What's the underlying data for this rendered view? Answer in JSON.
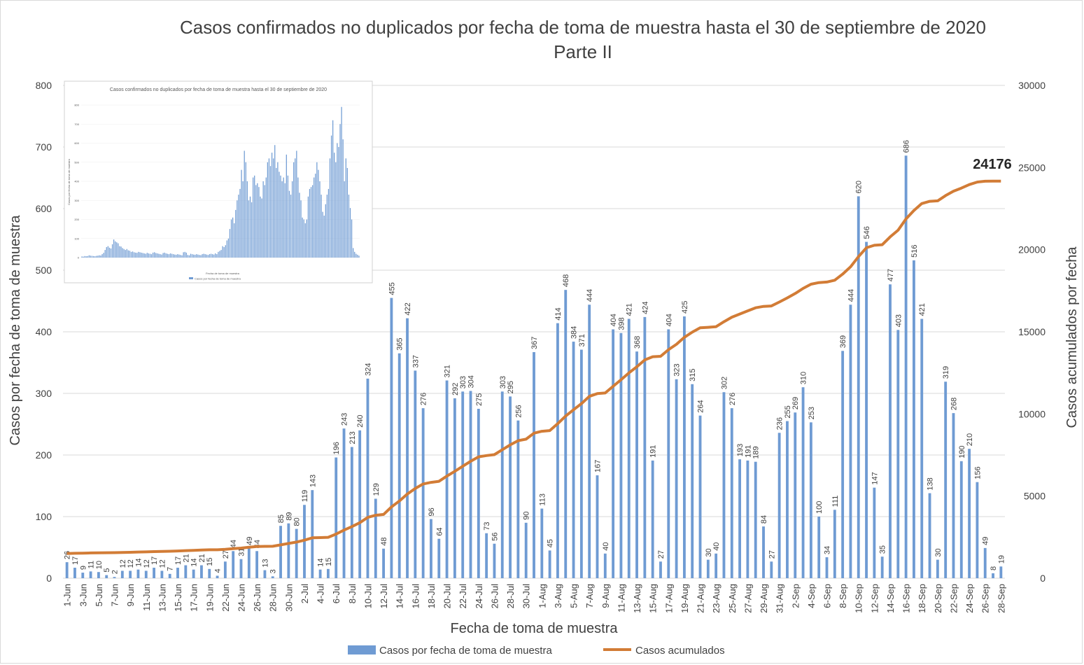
{
  "chart_data": {
    "type": "bar",
    "title": "Casos confirmados no duplicados por fecha de toma de muestra hasta el 30 de septiembre de 2020",
    "subtitle": "Parte II",
    "xlabel": "Fecha de toma de muestra",
    "ylabel": "Casos por fecha de toma de muestra",
    "y2label": "Casos acumulados por fecha",
    "ylim": [
      0,
      800
    ],
    "y2lim": [
      0,
      30000
    ],
    "yticks": [
      "0",
      "100",
      "200",
      "300",
      "400",
      "500",
      "600",
      "700",
      "800"
    ],
    "y2ticks": [
      "0",
      "5000",
      "10000",
      "15000",
      "20000",
      "25000",
      "30000"
    ],
    "grid": true,
    "legend_position": "bottom",
    "final_label": "24176",
    "colors": {
      "bars": "#6f9bd3",
      "line": "#d27c36",
      "grid": "#d9d9d9"
    },
    "tick_labels": [
      "1-Jun",
      "3-Jun",
      "5-Jun",
      "7-Jun",
      "9-Jun",
      "11-Jun",
      "13-Jun",
      "15-Jun",
      "17-Jun",
      "19-Jun",
      "22-Jun",
      "24-Jun",
      "26-Jun",
      "28-Jun",
      "30-Jun",
      "2-Jul",
      "4-Jul",
      "6-Jul",
      "8-Jul",
      "10-Jul",
      "12-Jul",
      "14-Jul",
      "16-Jul",
      "18-Jul",
      "20-Jul",
      "22-Jul",
      "24-Jul",
      "26-Jul",
      "28-Jul",
      "30-Jul",
      "1-Aug",
      "3-Aug",
      "5-Aug",
      "7-Aug",
      "9-Aug",
      "11-Aug",
      "13-Aug",
      "15-Aug",
      "17-Aug",
      "19-Aug",
      "21-Aug",
      "23-Aug",
      "25-Aug",
      "27-Aug",
      "29-Aug",
      "31-Aug",
      "2-Sep",
      "4-Sep",
      "6-Sep",
      "8-Sep",
      "10-Sep",
      "12-Sep",
      "14-Sep",
      "16-Sep",
      "18-Sep",
      "20-Sep",
      "22-Sep",
      "24-Sep",
      "26-Sep",
      "28-Sep"
    ],
    "series": [
      {
        "name": "Casos por fecha de toma de muestra",
        "type": "bar",
        "values": [
          26,
          17,
          9,
          11,
          10,
          5,
          2,
          12,
          12,
          14,
          12,
          17,
          12,
          7,
          17,
          21,
          14,
          21,
          15,
          4,
          27,
          44,
          31,
          49,
          44,
          13,
          3,
          85,
          89,
          80,
          119,
          143,
          14,
          15,
          196,
          243,
          213,
          240,
          324,
          129,
          48,
          455,
          365,
          422,
          337,
          276,
          96,
          64,
          321,
          292,
          303,
          304,
          275,
          73,
          56,
          303,
          295,
          256,
          90,
          367,
          113,
          45,
          414,
          468,
          384,
          371,
          444,
          167,
          40,
          404,
          398,
          421,
          368,
          424,
          191,
          27,
          404,
          323,
          425,
          315,
          264,
          30,
          40,
          302,
          276,
          193,
          191,
          189,
          84,
          27,
          236,
          255,
          269,
          310,
          253,
          100,
          34,
          111,
          369,
          444,
          620,
          546,
          147,
          35,
          477,
          403,
          686,
          516,
          421,
          138,
          30,
          319,
          268,
          190,
          210,
          156,
          49,
          8,
          19
        ]
      },
      {
        "name": "Casos acumulados",
        "type": "line",
        "values": [
          1500,
          1517,
          1526,
          1537,
          1547,
          1552,
          1554,
          1566,
          1578,
          1592,
          1604,
          1621,
          1633,
          1640,
          1657,
          1678,
          1692,
          1713,
          1728,
          1732,
          1759,
          1803,
          1834,
          1883,
          1927,
          1940,
          1943,
          2028,
          2117,
          2197,
          2316,
          2459,
          2473,
          2488,
          2684,
          2927,
          3140,
          3380,
          3704,
          3833,
          3881,
          4336,
          4701,
          5123,
          5460,
          5736,
          5832,
          5896,
          6217,
          6509,
          6812,
          7116,
          7391,
          7464,
          7520,
          7823,
          8118,
          8374,
          8464,
          8831,
          8944,
          8989,
          9403,
          9871,
          10255,
          10626,
          11070,
          11237,
          11277,
          11681,
          12079,
          12500,
          12868,
          13292,
          13483,
          13510,
          13914,
          14237,
          14662,
          14977,
          15241,
          15271,
          15311,
          15613,
          15889,
          16082,
          16273,
          16462,
          16546,
          16573,
          16809,
          17064,
          17333,
          17643,
          17896,
          17996,
          18030,
          18141,
          18510,
          18954,
          19574,
          20120,
          20267,
          20302,
          20779,
          21182,
          21868,
          22384,
          22805,
          22943,
          22973,
          23292,
          23560,
          23750,
          23960,
          24116,
          24165,
          24173,
          24176
        ]
      }
    ]
  },
  "inset": {
    "title": "Casos confirmados no duplicados por fecha de toma de muestra hasta el 30 de septiembre de 2020",
    "xlabel": "Fecha de toma de muestra",
    "ylabel": "Casos por fecha de toma de muestra",
    "legend": "Casos por fecha de toma de muestra",
    "ylim": [
      0,
      800
    ],
    "yticks": [
      "0",
      "100",
      "200",
      "300",
      "400",
      "500",
      "600",
      "700",
      "800"
    ],
    "values": [
      6,
      5,
      8,
      7,
      8,
      12,
      10,
      9,
      8,
      7,
      9,
      10,
      12,
      11,
      18,
      25,
      40,
      55,
      60,
      52,
      48,
      70,
      95,
      85,
      80,
      75,
      60,
      58,
      50,
      45,
      40,
      45,
      38,
      36,
      30,
      32,
      28,
      26,
      25,
      30,
      28,
      26,
      24,
      22,
      20,
      25,
      22,
      20,
      18,
      26,
      28,
      24,
      22,
      20,
      18,
      16,
      24,
      26,
      22,
      20,
      18,
      22,
      20,
      18,
      16,
      15,
      18,
      16,
      14,
      12,
      28,
      30,
      26,
      14,
      12,
      20,
      18,
      16,
      15,
      18,
      16,
      14,
      13,
      18,
      20,
      18,
      16,
      14,
      18,
      20,
      18,
      16,
      22,
      18,
      30,
      35,
      40,
      60,
      55,
      65,
      90,
      100,
      150,
      200,
      210,
      180,
      250,
      300,
      330,
      360,
      460,
      400,
      560,
      500,
      400,
      300,
      320,
      290,
      420,
      430,
      380,
      390,
      370,
      320,
      310,
      400,
      380,
      420,
      500,
      520,
      480,
      550,
      520,
      590,
      470,
      500,
      450,
      430,
      400,
      420,
      390,
      540,
      430,
      350,
      330,
      400,
      500,
      520,
      560,
      420,
      340,
      300,
      210,
      200,
      180,
      200,
      320,
      360,
      370,
      380,
      420,
      440,
      500,
      460,
      400,
      330,
      240,
      220,
      280,
      330,
      360,
      520,
      640,
      720,
      550,
      500,
      600,
      580,
      700,
      790,
      620,
      400,
      520,
      470,
      330,
      260,
      200,
      50,
      30,
      20,
      15,
      10
    ]
  }
}
